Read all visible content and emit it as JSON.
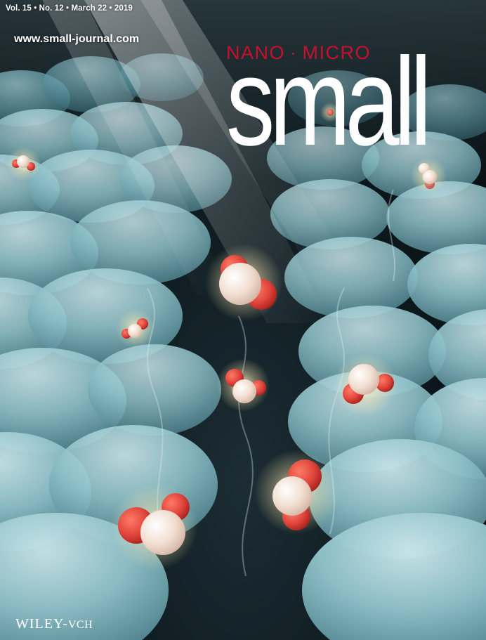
{
  "cover": {
    "issue_line": "Vol. 15 • No. 12 • March 22 • 2019",
    "url": "www.small-journal.com",
    "masthead_pre": [
      "NANO",
      "·",
      "MICRO"
    ],
    "masthead": "small",
    "publisher_main": "WILEY",
    "publisher_sep": "-",
    "publisher_sub": "VCH"
  },
  "colors": {
    "accent": "#c8102e",
    "masthead_text": "#ffffff",
    "dome": "#7fb4bd",
    "molecule_oxygen": "#e0453c",
    "molecule_hydrogen": "#f1ddd0"
  },
  "artwork": {
    "subject": "water-molecules-over-dome-array",
    "icons": [
      "light-ray",
      "dome",
      "water-molecule",
      "vapor-wisp"
    ]
  }
}
